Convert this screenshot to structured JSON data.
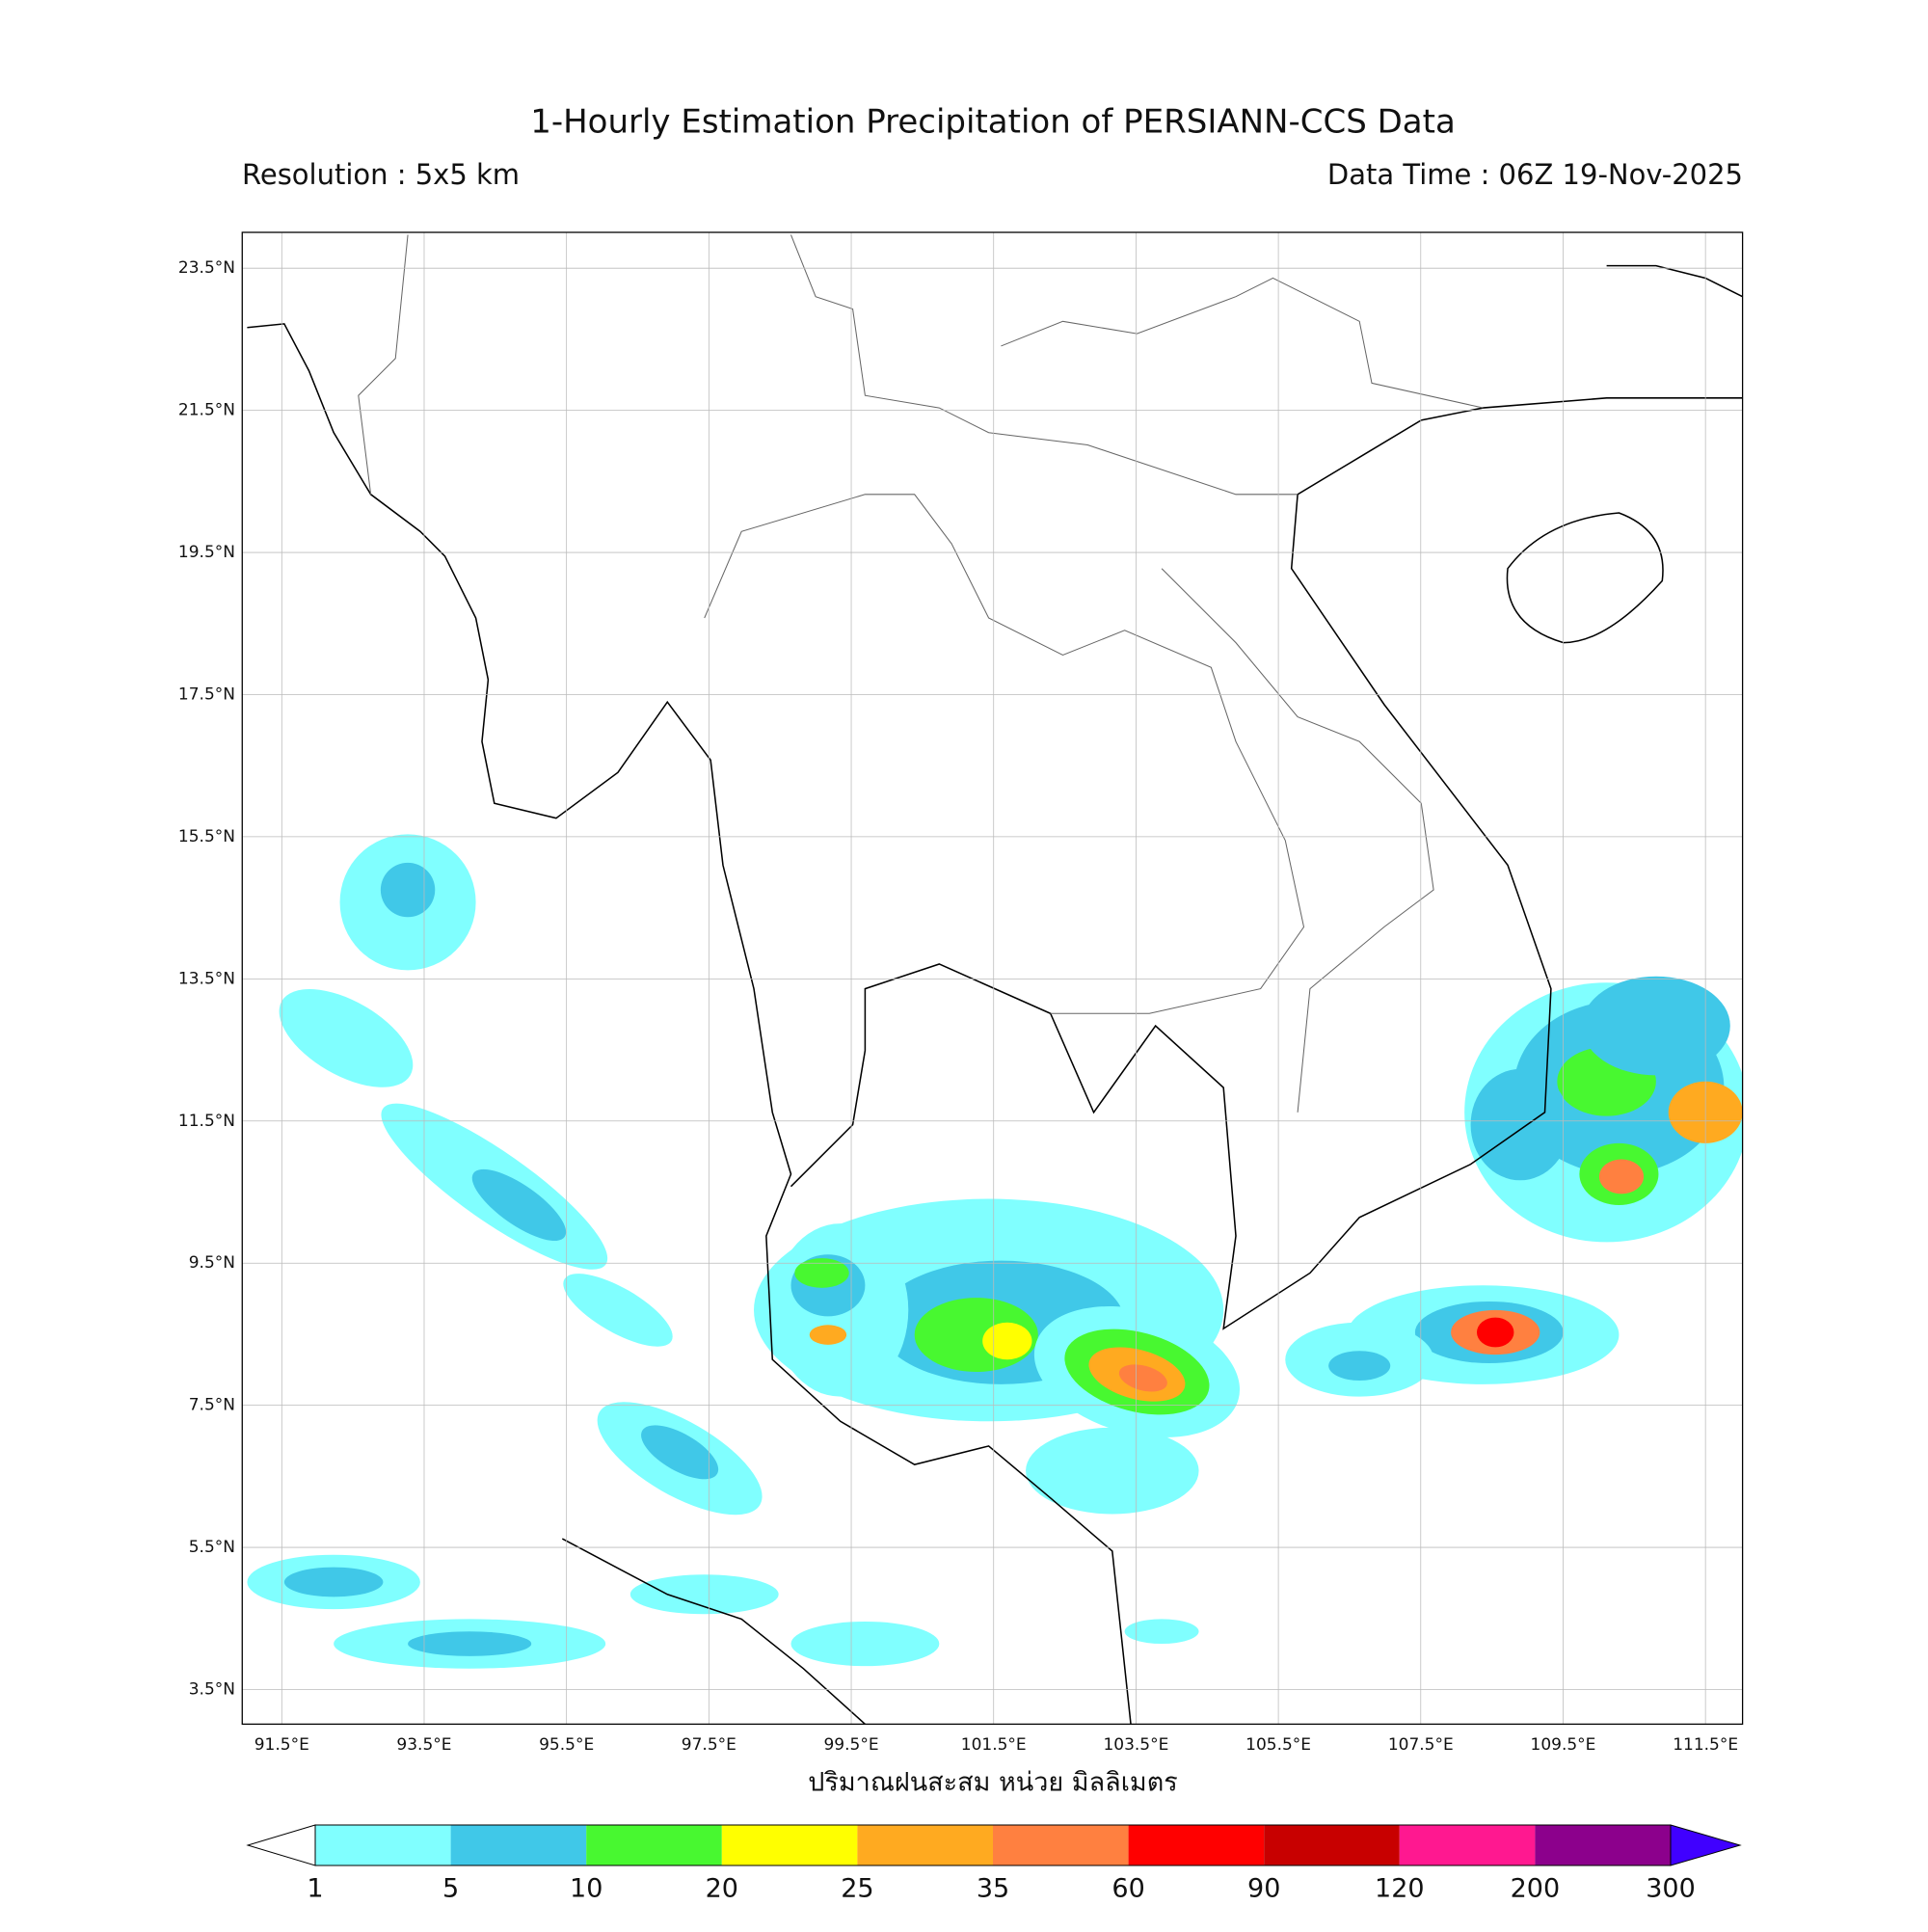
{
  "header": {
    "title": "1-Hourly Estimation Precipitation of PERSIANN-CCS Data",
    "resolution": "Resolution : 5x5 km",
    "data_time": "Data Time : 06Z 19-Nov-2025"
  },
  "map": {
    "lon_labels": [
      "91.5°E",
      "93.5°E",
      "95.5°E",
      "97.5°E",
      "99.5°E",
      "101.5°E",
      "103.5°E",
      "105.5°E",
      "107.5°E",
      "109.5°E",
      "111.5°E"
    ],
    "lat_labels": [
      "23.5°N",
      "21.5°N",
      "19.5°N",
      "17.5°N",
      "15.5°N",
      "13.5°N",
      "11.5°N",
      "9.5°N",
      "7.5°N",
      "5.5°N",
      "3.5°N"
    ],
    "x_label": "ปริมาณฝนสะสม หน่วย มิลลิเมตร"
  },
  "colorbar": {
    "labels": [
      "1",
      "5",
      "10",
      "20",
      "25",
      "35",
      "60",
      "90",
      "120",
      "200",
      "300"
    ],
    "colors": [
      "#80ffff",
      "#40c8e8",
      "#48f830",
      "#ffff00",
      "#ffaa20",
      "#ff8040",
      "#ff0000",
      "#c80000",
      "#ff1890",
      "#8c008c"
    ],
    "over_color": "#4000ff"
  }
}
